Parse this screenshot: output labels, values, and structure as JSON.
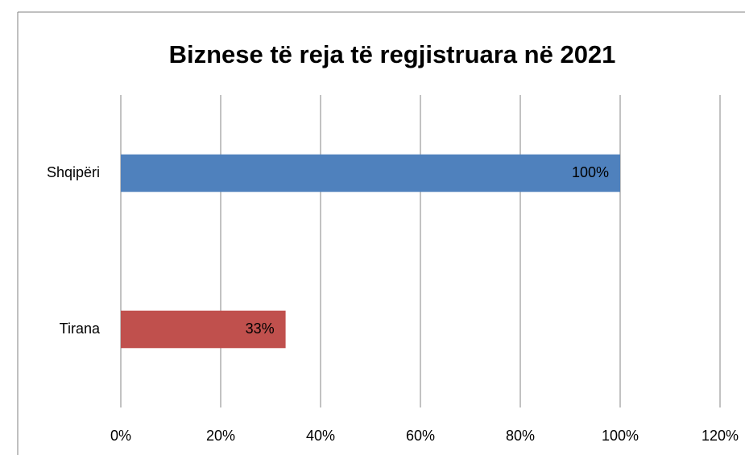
{
  "chart_data": {
    "type": "bar",
    "orientation": "horizontal",
    "title": "Biznese të reja të regjistruara në 2021",
    "categories": [
      "Shqipëri",
      "Tirana"
    ],
    "values": [
      100,
      33
    ],
    "value_labels": [
      "100%",
      "33%"
    ],
    "colors": [
      "#4f81bd",
      "#c0504d"
    ],
    "xlim": [
      0,
      120
    ],
    "xticks": [
      {
        "value": 0,
        "label": "0%"
      },
      {
        "value": 20,
        "label": "20%"
      },
      {
        "value": 40,
        "label": "40%"
      },
      {
        "value": 60,
        "label": "60%"
      },
      {
        "value": 80,
        "label": "80%"
      },
      {
        "value": 100,
        "label": "100%"
      },
      {
        "value": 120,
        "label": "120%"
      }
    ],
    "grid": true
  }
}
